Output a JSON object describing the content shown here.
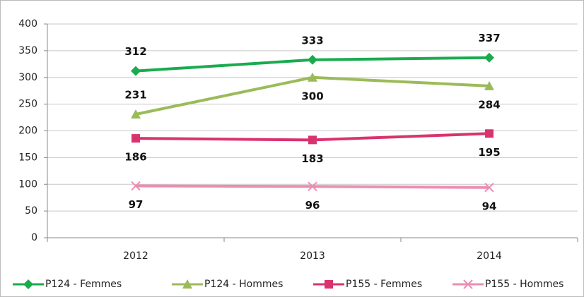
{
  "chart_data": {
    "type": "line",
    "categories": [
      "2012",
      "2013",
      "2014"
    ],
    "ylim": [
      0,
      400
    ],
    "yticks": [
      0,
      50,
      100,
      150,
      200,
      250,
      300,
      350,
      400
    ],
    "grid": true,
    "legend": "bottom",
    "series": [
      {
        "name": "P124 - Femmes",
        "color": "#1aab4e",
        "marker": "diamond",
        "values": [
          312,
          333,
          337
        ]
      },
      {
        "name": "P124 - Hommes",
        "color": "#9bbb59",
        "marker": "triangle",
        "values": [
          231,
          300,
          284
        ]
      },
      {
        "name": "P155 - Femmes",
        "color": "#d9336f",
        "marker": "square",
        "values": [
          186,
          183,
          195
        ]
      },
      {
        "name": "P155 - Hommes",
        "color": "#ec8db2",
        "marker": "x",
        "values": [
          97,
          96,
          94
        ]
      }
    ]
  }
}
